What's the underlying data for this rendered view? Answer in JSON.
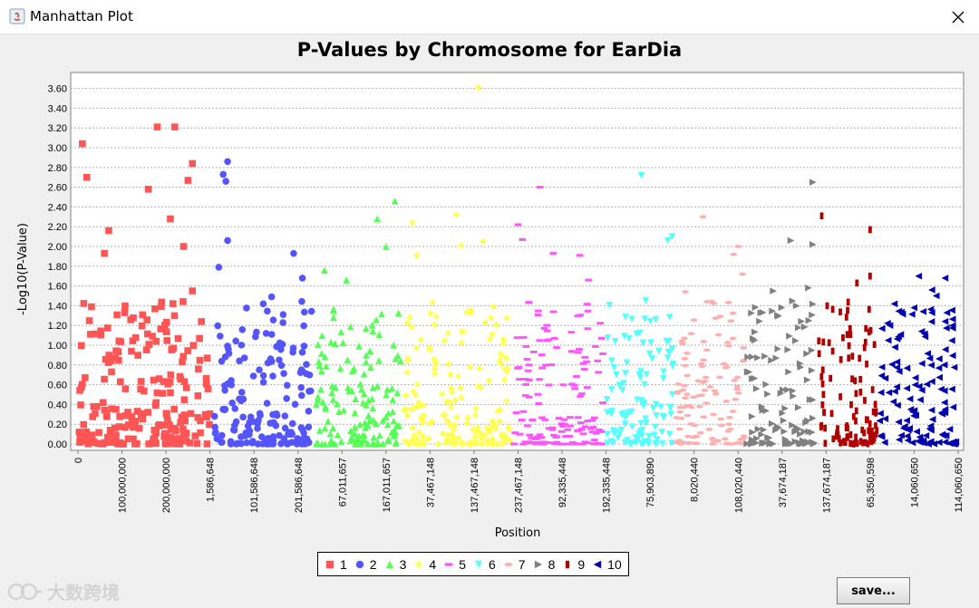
{
  "window": {
    "title": "Manhattan Plot"
  },
  "buttons": {
    "save_label": "save..."
  },
  "watermark": {
    "text": "大数跨境"
  },
  "chart_data": {
    "type": "scatter",
    "title": "P-Values by Chromosome for EarDia",
    "xlabel": "Position",
    "ylabel": "-Log10(P-Value)",
    "ylim": [
      0,
      3.7
    ],
    "yticks": [
      0.0,
      0.2,
      0.4,
      0.6,
      0.8,
      1.0,
      1.2,
      1.4,
      1.6,
      1.8,
      2.0,
      2.2,
      2.4,
      2.6,
      2.8,
      3.0,
      3.2,
      3.4,
      3.6
    ],
    "ytick_labels": [
      "0.00",
      "0.20",
      "0.40",
      "0.60",
      "0.80",
      "1.00",
      "1.20",
      "1.40",
      "1.60",
      "1.80",
      "2.00",
      "2.20",
      "2.40",
      "2.60",
      "2.80",
      "3.00",
      "3.20",
      "3.40",
      "3.60"
    ],
    "grid": true,
    "legend_position": "bottom-center",
    "xtick_labels": [
      "0",
      "100,000,000",
      "200,000,000",
      "1,586,648",
      "101,586,648",
      "201,586,648",
      "67,011,657",
      "167,011,657",
      "37,467,148",
      "137,467,148",
      "237,467,148",
      "92,335,448",
      "192,335,448",
      "75,903,890",
      "8,020,440",
      "108,020,440",
      "37,674,187",
      "137,674,187",
      "65,350,598",
      "14,060,650",
      "114,060,650"
    ],
    "series": [
      {
        "name": "1",
        "color": "#ff5555",
        "marker": "square",
        "range": [
          0.0,
          0.155
        ],
        "high_points": [
          [
            0.005,
            3.04
          ],
          [
            0.01,
            2.7
          ],
          [
            0.08,
            2.58
          ],
          [
            0.09,
            3.21
          ],
          [
            0.11,
            3.21
          ],
          [
            0.13,
            2.84
          ],
          [
            0.125,
            2.67
          ],
          [
            0.105,
            2.28
          ],
          [
            0.035,
            2.16
          ],
          [
            0.03,
            1.93
          ],
          [
            0.12,
            2.0
          ],
          [
            0.13,
            1.55
          ]
        ]
      },
      {
        "name": "2",
        "color": "#5555ff",
        "marker": "circle",
        "range": [
          0.155,
          0.27
        ],
        "high_points": [
          [
            0.17,
            2.86
          ],
          [
            0.165,
            2.73
          ],
          [
            0.168,
            2.66
          ],
          [
            0.17,
            2.06
          ],
          [
            0.245,
            1.93
          ],
          [
            0.255,
            1.68
          ],
          [
            0.22,
            1.49
          ],
          [
            0.16,
            1.79
          ]
        ]
      },
      {
        "name": "3",
        "color": "#55ff55",
        "marker": "triangle-up",
        "range": [
          0.27,
          0.37
        ],
        "high_points": [
          [
            0.36,
            2.46
          ],
          [
            0.34,
            2.28
          ],
          [
            0.28,
            1.76
          ],
          [
            0.305,
            1.66
          ],
          [
            0.35,
            2.0
          ]
        ]
      },
      {
        "name": "4",
        "color": "#ffff55",
        "marker": "diamond",
        "range": [
          0.37,
          0.495
        ],
        "high_points": [
          [
            0.455,
            3.61
          ],
          [
            0.38,
            2.24
          ],
          [
            0.43,
            2.32
          ],
          [
            0.435,
            2.01
          ],
          [
            0.46,
            2.05
          ],
          [
            0.385,
            1.91
          ]
        ]
      },
      {
        "name": "5",
        "color": "#ff55ff",
        "marker": "dash",
        "range": [
          0.495,
          0.6
        ],
        "high_points": [
          [
            0.525,
            2.6
          ],
          [
            0.5,
            2.22
          ],
          [
            0.505,
            2.07
          ],
          [
            0.54,
            1.93
          ],
          [
            0.57,
            1.91
          ],
          [
            0.58,
            1.66
          ]
        ]
      },
      {
        "name": "6",
        "color": "#55ffff",
        "marker": "triangle-down",
        "range": [
          0.6,
          0.68
        ],
        "high_points": [
          [
            0.64,
            2.72
          ],
          [
            0.675,
            2.1
          ],
          [
            0.67,
            2.06
          ],
          [
            0.645,
            1.45
          ]
        ]
      },
      {
        "name": "7",
        "color": "#ffafaf",
        "marker": "ellipse",
        "range": [
          0.68,
          0.76
        ],
        "high_points": [
          [
            0.71,
            2.3
          ],
          [
            0.75,
            2.0
          ],
          [
            0.745,
            1.92
          ],
          [
            0.755,
            1.72
          ],
          [
            0.69,
            1.54
          ]
        ]
      },
      {
        "name": "8",
        "color": "#808080",
        "marker": "triangle-right",
        "range": [
          0.76,
          0.84
        ],
        "high_points": [
          [
            0.835,
            2.65
          ],
          [
            0.81,
            2.06
          ],
          [
            0.835,
            2.02
          ],
          [
            0.83,
            1.58
          ],
          [
            0.79,
            1.55
          ]
        ]
      },
      {
        "name": "9",
        "color": "#b00000",
        "marker": "rect-v",
        "range": [
          0.84,
          0.91
        ],
        "high_points": [
          [
            0.845,
            2.31
          ],
          [
            0.9,
            2.17
          ],
          [
            0.9,
            1.7
          ],
          [
            0.885,
            1.63
          ]
        ]
      },
      {
        "name": "10",
        "color": "#0000b0",
        "marker": "triangle-left",
        "range": [
          0.91,
          1.0
        ],
        "high_points": [
          [
            0.955,
            1.7
          ],
          [
            0.985,
            1.68
          ],
          [
            0.97,
            1.56
          ],
          [
            0.975,
            1.5
          ],
          [
            0.97,
            1.33
          ]
        ]
      }
    ]
  }
}
